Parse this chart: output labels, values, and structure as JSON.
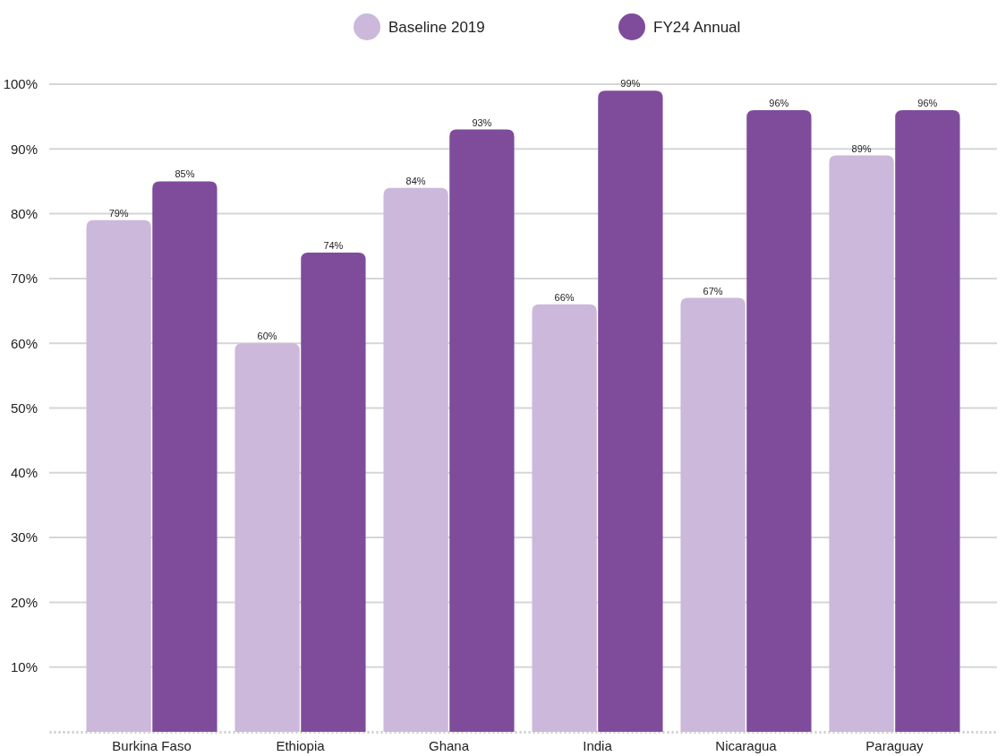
{
  "chart_data": {
    "type": "bar",
    "categories": [
      "Burkina Faso",
      "Ethiopia",
      "Ghana",
      "India",
      "Nicaragua",
      "Paraguay"
    ],
    "series": [
      {
        "name": "Baseline 2019",
        "color": "#cbb8da",
        "values": [
          79,
          60,
          84,
          66,
          67,
          89
        ],
        "value_labels": [
          "79%",
          "60%",
          "84%",
          "66%",
          "67%",
          "89%"
        ]
      },
      {
        "name": "FY24 Annual",
        "color": "#7f4c9b",
        "values": [
          85,
          74,
          93,
          99,
          96,
          96
        ],
        "value_labels": [
          "85%",
          "74%",
          "93%",
          "99%",
          "96%",
          "96%"
        ]
      }
    ],
    "ylim": [
      0,
      100
    ],
    "yticks": [
      {
        "value": 10,
        "label": "10%"
      },
      {
        "value": 20,
        "label": "20%"
      },
      {
        "value": 30,
        "label": "30%"
      },
      {
        "value": 40,
        "label": "40%"
      },
      {
        "value": 50,
        "label": "50%"
      },
      {
        "value": 60,
        "label": "60%"
      },
      {
        "value": 70,
        "label": "70%"
      },
      {
        "value": 80,
        "label": "80%"
      },
      {
        "value": 90,
        "label": "90%"
      },
      {
        "value": 100,
        "label": "100%"
      }
    ],
    "grid": "y",
    "legend": "top"
  }
}
